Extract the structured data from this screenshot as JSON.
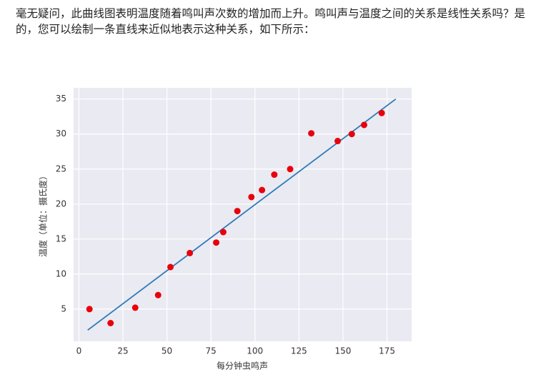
{
  "text": {
    "lines": [
      "毫无疑问，此曲线图表明温度随着鸣叫声次数的增加而上升。鸣叫声与温度之间的关系是线性关系吗？是",
      "的，您可以绘制一条直线来近似地表示这种关系，如下所示："
    ]
  },
  "chart_data": {
    "type": "scatter",
    "xlabel": "每分钟虫鸣声",
    "ylabel": "温度（单位：摄氏度）",
    "xlim": [
      -3,
      189
    ],
    "ylim": [
      0.4,
      36.6
    ],
    "xticks": [
      0,
      25,
      50,
      75,
      100,
      125,
      150,
      175
    ],
    "yticks": [
      5,
      10,
      15,
      20,
      25,
      30,
      35
    ],
    "grid": true,
    "background": "#eaeaf2",
    "series": [
      {
        "type": "scatter",
        "color": "#e8000b",
        "x": [
          6,
          18,
          32,
          45,
          52,
          63,
          78,
          82,
          90,
          98,
          104,
          111,
          120,
          132,
          147,
          155,
          162,
          172
        ],
        "values": [
          5,
          3,
          5.2,
          7,
          11,
          13,
          14.5,
          16,
          19,
          21,
          22,
          24.2,
          25,
          30.1,
          29,
          30,
          31.3,
          33
        ]
      },
      {
        "type": "line",
        "color": "#2f7bb6",
        "x": [
          5,
          180
        ],
        "values": [
          2,
          35
        ]
      }
    ]
  }
}
